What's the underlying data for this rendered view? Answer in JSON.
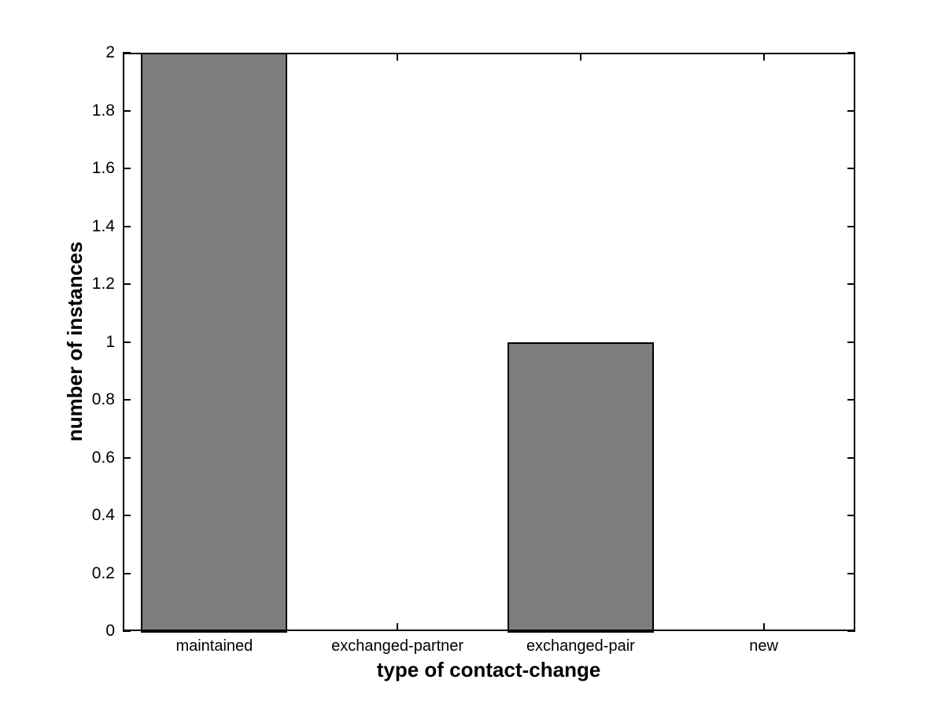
{
  "figure": {
    "background": "#ffffff"
  },
  "chart_data": {
    "type": "bar",
    "title": "",
    "xlabel": "type of contact-change",
    "ylabel": "number of instances",
    "categories": [
      "maintained",
      "exchanged-partner",
      "exchanged-pair",
      "new"
    ],
    "values": [
      2,
      0,
      1,
      0
    ],
    "ylim": [
      0,
      2
    ],
    "yticks": [
      0,
      0.2,
      0.4,
      0.6,
      0.8,
      1,
      1.2,
      1.4,
      1.6,
      1.8,
      2
    ],
    "ytick_labels": [
      "0",
      "0.2",
      "0.4",
      "0.6",
      "0.8",
      "1",
      "1.2",
      "1.4",
      "1.6",
      "1.8",
      "2"
    ],
    "bar_width_fraction": 0.8,
    "bar_color": "#7d7d7d",
    "bar_edge_color": "#000000",
    "axis_color": "#000000",
    "text_color": "#000000",
    "grid": false,
    "legend_position": "none"
  }
}
